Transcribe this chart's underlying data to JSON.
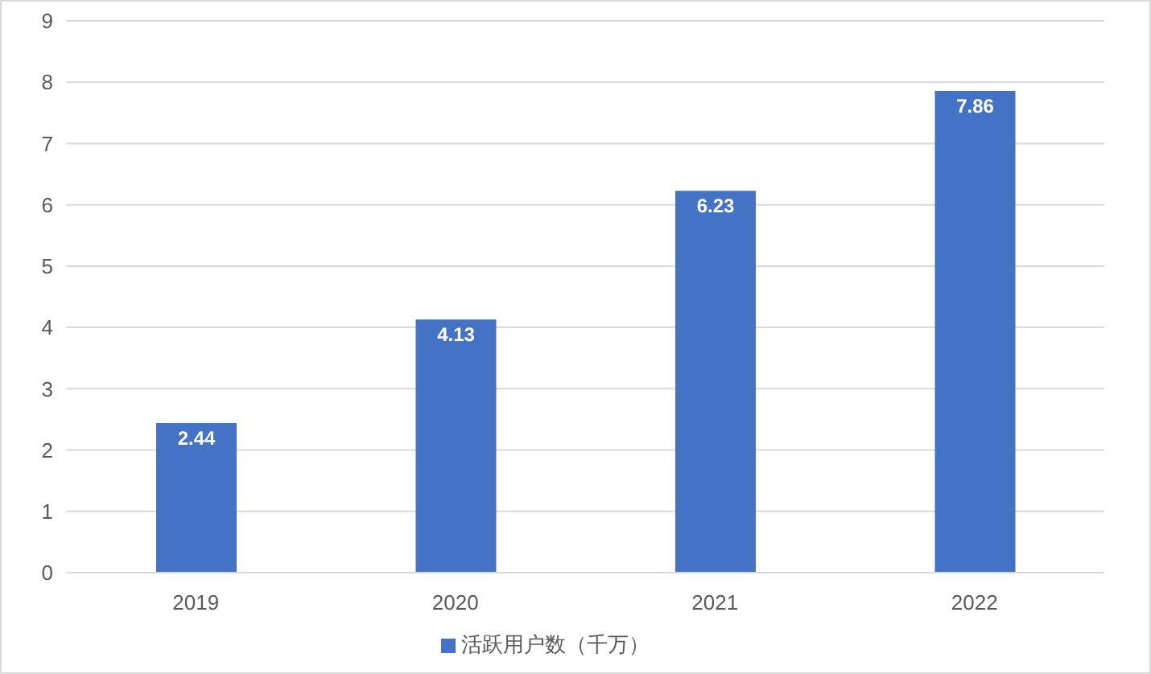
{
  "chart_data": {
    "type": "bar",
    "categories": [
      "2019",
      "2020",
      "2021",
      "2022"
    ],
    "series": [
      {
        "name": "活跃用户数（千万）",
        "color": "#4472c4",
        "values": [
          2.44,
          4.13,
          6.23,
          7.86
        ]
      }
    ],
    "ylim": [
      0,
      9
    ],
    "yticks": [
      0,
      1,
      2,
      3,
      4,
      5,
      6,
      7,
      8,
      9
    ],
    "grid": "y",
    "legend": "bottom",
    "data_labels": true
  }
}
